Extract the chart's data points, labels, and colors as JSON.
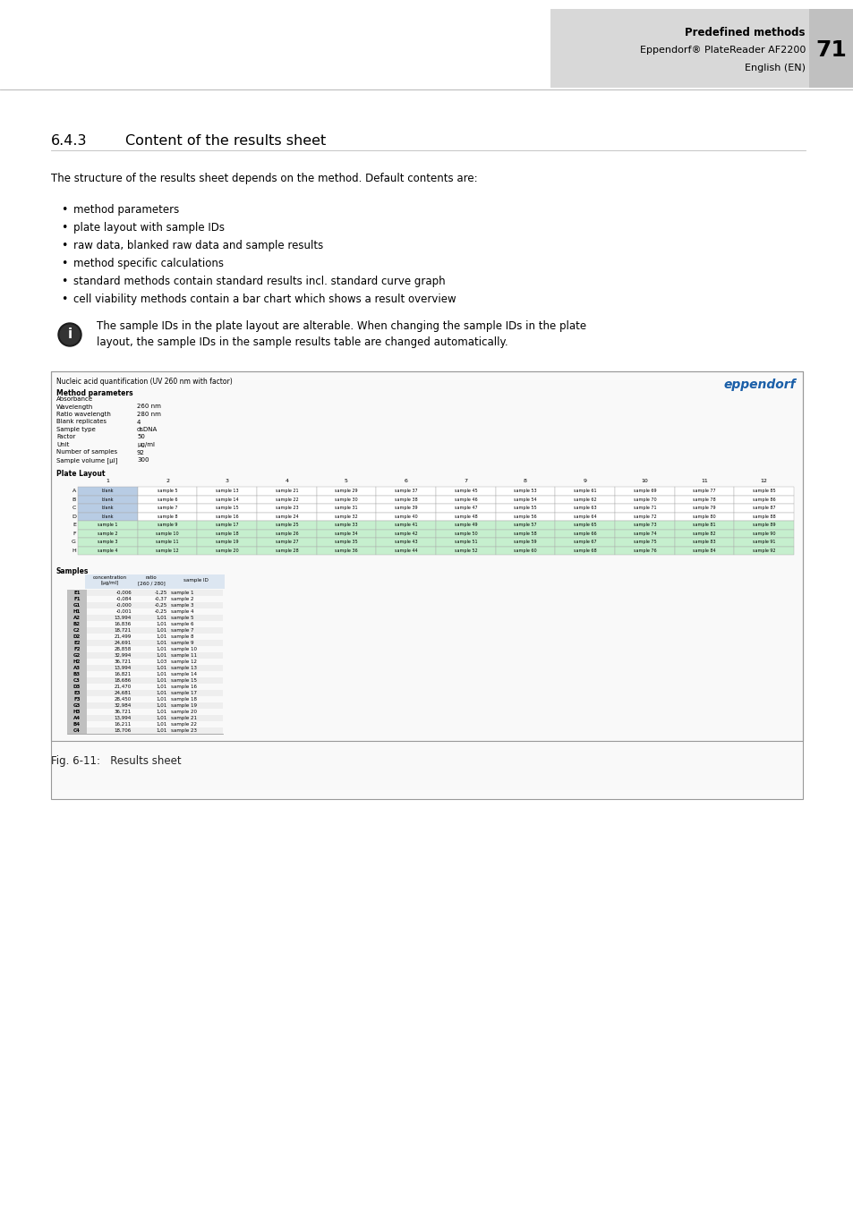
{
  "page_bg": "#ffffff",
  "header_bg": "#d8d8d8",
  "header_text_bold": "Predefined methods",
  "header_text_line2": "Eppendorf® PlateReader AF2200",
  "header_text_line3": "English (EN)",
  "header_page_num": "71",
  "section_num": "6.4.3",
  "section_title": "Content of the results sheet",
  "intro_text": "The structure of the results sheet depends on the method. Default contents are:",
  "bullet_items": [
    "method parameters",
    "plate layout with sample IDs",
    "raw data, blanked raw data and sample results",
    "method specific calculations",
    "standard methods contain standard results incl. standard curve graph",
    "cell viability methods contain a bar chart which shows a result overview"
  ],
  "info_text_line1": "The sample IDs in the plate layout are alterable. When changing the sample IDs in the plate",
  "info_text_line2": "layout, the sample IDs in the sample results table are changed automatically.",
  "figure_caption": "Fig. 6-11:   Results sheet",
  "screenshot_title": "Nucleic acid quantification (UV 260 nm with factor)",
  "eppendorf_logo_color": "#1a5fa8",
  "method_params_label": "Method parameters",
  "method_params": [
    [
      "Absorbance",
      ""
    ],
    [
      "Wavelength",
      "260 nm"
    ],
    [
      "Ratio wavelength",
      "280 nm"
    ],
    [
      "Blank replicates",
      "4"
    ],
    [
      "Sample type",
      "dsDNA"
    ],
    [
      "Factor",
      "50"
    ],
    [
      "Unit",
      "µg/ml"
    ],
    [
      "Number of samples",
      "92"
    ],
    [
      "Sample volume [µl]",
      "300"
    ]
  ],
  "plate_layout_label": "Plate Layout",
  "plate_cols": [
    "1",
    "2",
    "3",
    "4",
    "5",
    "6",
    "7",
    "8",
    "9",
    "10",
    "11",
    "12"
  ],
  "plate_rows": [
    "A",
    "B",
    "C",
    "D",
    "E",
    "F",
    "G",
    "H"
  ],
  "plate_data": [
    [
      "blank",
      "sample 5",
      "sample 13",
      "sample 21",
      "sample 29",
      "sample 37",
      "sample 45",
      "sample 53",
      "sample 61",
      "sample 69",
      "sample 77",
      "sample 85"
    ],
    [
      "blank",
      "sample 6",
      "sample 14",
      "sample 22",
      "sample 30",
      "sample 38",
      "sample 46",
      "sample 54",
      "sample 62",
      "sample 70",
      "sample 78",
      "sample 86"
    ],
    [
      "blank",
      "sample 7",
      "sample 15",
      "sample 23",
      "sample 31",
      "sample 39",
      "sample 47",
      "sample 55",
      "sample 63",
      "sample 71",
      "sample 79",
      "sample 87"
    ],
    [
      "blank",
      "sample 8",
      "sample 16",
      "sample 24",
      "sample 32",
      "sample 40",
      "sample 48",
      "sample 56",
      "sample 64",
      "sample 72",
      "sample 80",
      "sample 88"
    ],
    [
      "sample 1",
      "sample 9",
      "sample 17",
      "sample 25",
      "sample 33",
      "sample 41",
      "sample 49",
      "sample 57",
      "sample 65",
      "sample 73",
      "sample 81",
      "sample 89"
    ],
    [
      "sample 2",
      "sample 10",
      "sample 18",
      "sample 26",
      "sample 34",
      "sample 42",
      "sample 50",
      "sample 58",
      "sample 66",
      "sample 74",
      "sample 82",
      "sample 90"
    ],
    [
      "sample 3",
      "sample 11",
      "sample 19",
      "sample 27",
      "sample 35",
      "sample 43",
      "sample 51",
      "sample 59",
      "sample 67",
      "sample 75",
      "sample 83",
      "sample 91"
    ],
    [
      "sample 4",
      "sample 12",
      "sample 20",
      "sample 28",
      "sample 36",
      "sample 44",
      "sample 52",
      "sample 60",
      "sample 68",
      "sample 76",
      "sample 84",
      "sample 92"
    ]
  ],
  "blank_color": "#b8cce4",
  "sample1_color": "#c6efce",
  "row_dark_color": "#dce6f1",
  "samples_label": "Samples",
  "samples_data": [
    [
      "E1",
      "-0,006",
      "-1,25",
      "sample 1"
    ],
    [
      "F1",
      "-0,084",
      "-0,37",
      "sample 2"
    ],
    [
      "G1",
      "-0,000",
      "-0,25",
      "sample 3"
    ],
    [
      "H1",
      "-0,001",
      "-0,25",
      "sample 4"
    ],
    [
      "A2",
      "13,994",
      "1,01",
      "sample 5"
    ],
    [
      "B2",
      "16,836",
      "1,01",
      "sample 6"
    ],
    [
      "C2",
      "18,721",
      "1,01",
      "sample 7"
    ],
    [
      "D2",
      "21,499",
      "1,01",
      "sample 8"
    ],
    [
      "E2",
      "24,691",
      "1,01",
      "sample 9"
    ],
    [
      "F2",
      "28,858",
      "1,01",
      "sample 10"
    ],
    [
      "G2",
      "32,994",
      "1,01",
      "sample 11"
    ],
    [
      "H2",
      "36,721",
      "1,03",
      "sample 12"
    ],
    [
      "A3",
      "13,994",
      "1,01",
      "sample 13"
    ],
    [
      "B3",
      "16,821",
      "1,01",
      "sample 14"
    ],
    [
      "C3",
      "18,686",
      "1,01",
      "sample 15"
    ],
    [
      "D3",
      "21,470",
      "1,01",
      "sample 16"
    ],
    [
      "E3",
      "24,681",
      "1,01",
      "sample 17"
    ],
    [
      "F3",
      "28,450",
      "1,01",
      "sample 18"
    ],
    [
      "G3",
      "32,984",
      "1,01",
      "sample 19"
    ],
    [
      "H3",
      "36,721",
      "1,01",
      "sample 20"
    ],
    [
      "A4",
      "13,994",
      "1,01",
      "sample 21"
    ],
    [
      "B4",
      "16,211",
      "1,01",
      "sample 22"
    ],
    [
      "C4",
      "18,706",
      "1,01",
      "sample 23"
    ]
  ]
}
